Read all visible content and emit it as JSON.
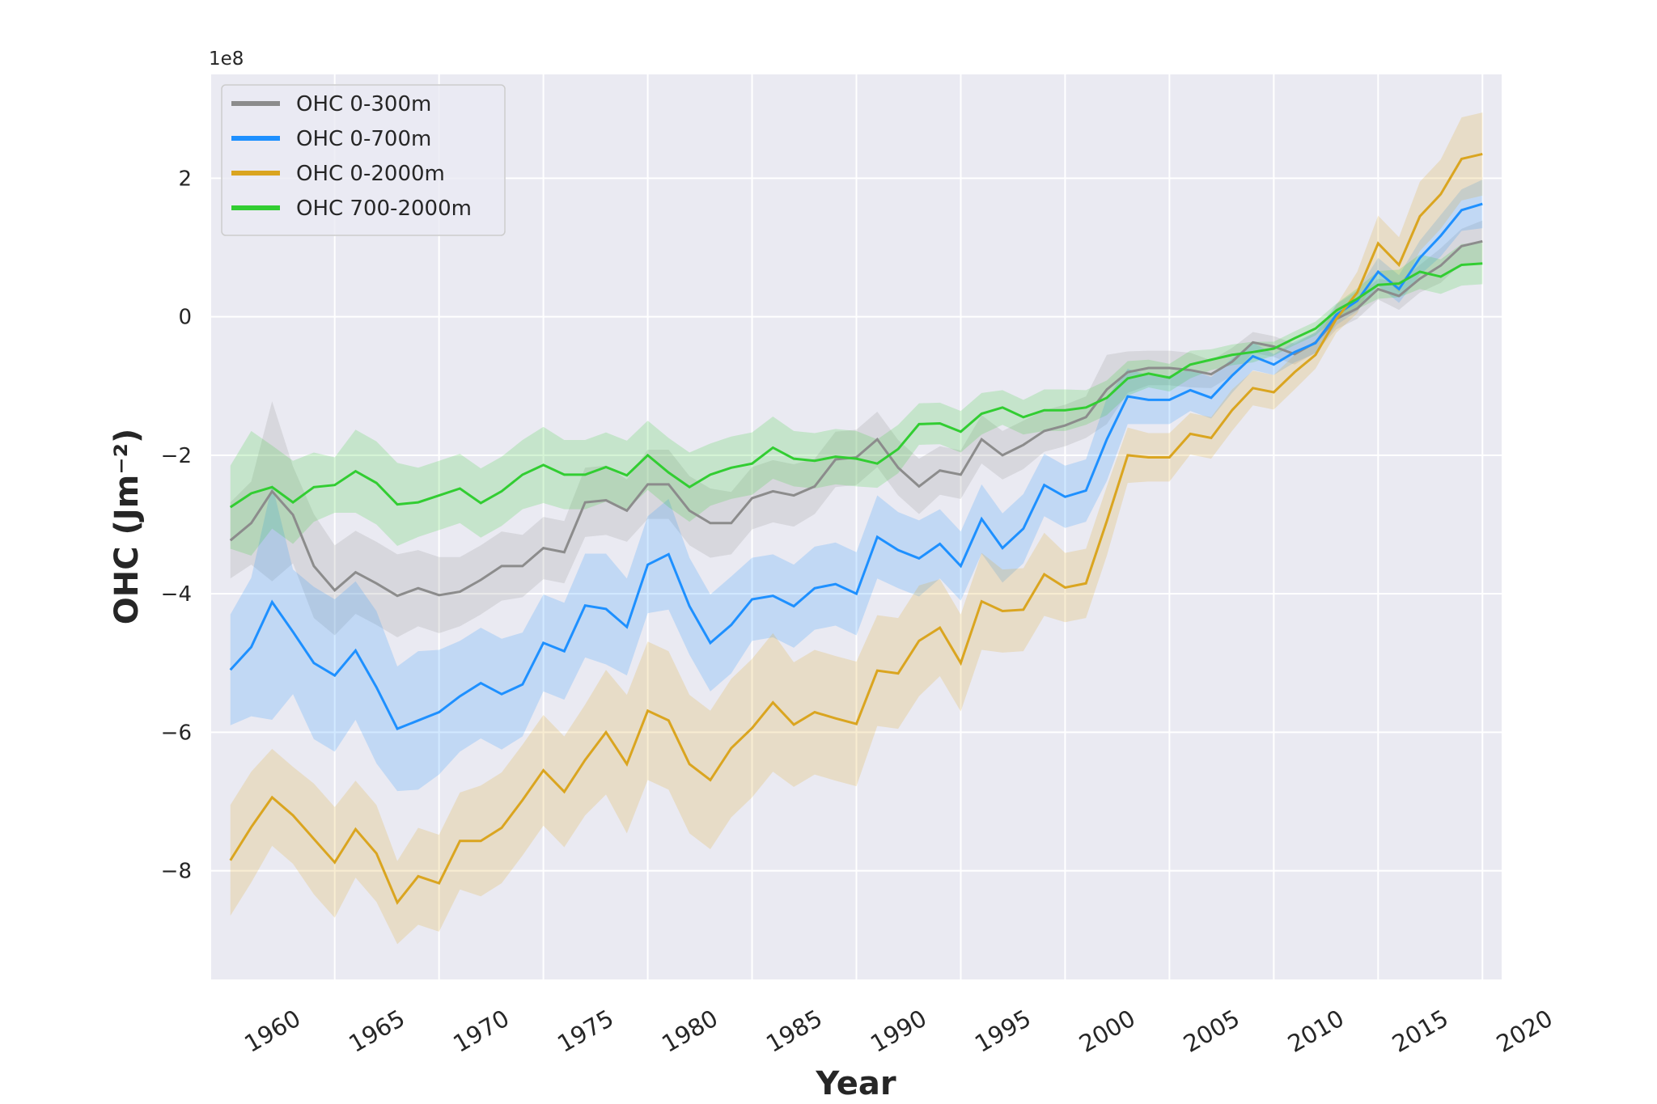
{
  "chart_data": {
    "type": "line",
    "xlabel": "Year",
    "ylabel": "OHC (Jm⁻²)",
    "y_offset_label": "1e8",
    "x": [
      1955,
      1956,
      1957,
      1958,
      1959,
      1960,
      1961,
      1962,
      1963,
      1964,
      1965,
      1966,
      1967,
      1968,
      1969,
      1970,
      1971,
      1972,
      1973,
      1974,
      1975,
      1976,
      1977,
      1978,
      1979,
      1980,
      1981,
      1982,
      1983,
      1984,
      1985,
      1986,
      1987,
      1988,
      1989,
      1990,
      1991,
      1992,
      1993,
      1994,
      1995,
      1996,
      1997,
      1998,
      1999,
      2000,
      2001,
      2002,
      2003,
      2004,
      2005,
      2006,
      2007,
      2008,
      2009,
      2010,
      2011,
      2012,
      2013,
      2014,
      2015
    ],
    "xlim": [
      1954.08,
      2015.92
    ],
    "xticks": [
      1960,
      1965,
      1970,
      1975,
      1980,
      1985,
      1990,
      1995,
      2000,
      2005,
      2010,
      2015,
      2020
    ],
    "ylim": [
      -9.57,
      3.5
    ],
    "yticks": [
      {
        "value": -8,
        "label": "−8"
      },
      {
        "value": -6,
        "label": "−6"
      },
      {
        "value": -4,
        "label": "−4"
      },
      {
        "value": -2,
        "label": "−2"
      },
      0,
      2
    ],
    "grid": true,
    "legend": "upper left",
    "series": [
      {
        "name": "OHC 0-300m",
        "color": "#8c8c8c",
        "values": [
          -3.23,
          -2.98,
          -2.52,
          -2.86,
          -3.6,
          -3.95,
          -3.69,
          -3.85,
          -4.03,
          -3.92,
          -4.02,
          -3.97,
          -3.8,
          -3.6,
          -3.6,
          -3.34,
          -3.4,
          -2.68,
          -2.65,
          -2.8,
          -2.42,
          -2.42,
          -2.8,
          -2.98,
          -2.98,
          -2.62,
          -2.52,
          -2.58,
          -2.45,
          -2.06,
          -2.03,
          -1.77,
          -2.18,
          -2.45,
          -2.22,
          -2.28,
          -1.77,
          -2.0,
          -1.85,
          -1.65,
          -1.57,
          -1.45,
          -1.05,
          -0.8,
          -0.74,
          -0.74,
          -0.77,
          -0.83,
          -0.65,
          -0.37,
          -0.43,
          -0.54,
          -0.37,
          -0.03,
          0.12,
          0.4,
          0.3,
          0.55,
          0.74,
          1.02,
          1.09
        ],
        "errors": [
          0.55,
          0.6,
          1.3,
          0.7,
          0.75,
          0.65,
          0.6,
          0.6,
          0.6,
          0.55,
          0.55,
          0.5,
          0.5,
          0.5,
          0.45,
          0.45,
          0.45,
          0.5,
          0.5,
          0.45,
          0.5,
          0.5,
          0.5,
          0.5,
          0.45,
          0.45,
          0.45,
          0.45,
          0.4,
          0.4,
          0.4,
          0.4,
          0.4,
          0.4,
          0.35,
          0.35,
          0.35,
          0.35,
          0.35,
          0.3,
          0.3,
          0.3,
          0.5,
          0.3,
          0.25,
          0.25,
          0.25,
          0.2,
          0.2,
          0.15,
          0.15,
          0.15,
          0.15,
          0.15,
          0.15,
          0.15,
          0.2,
          0.2,
          0.25,
          0.25,
          0.3
        ]
      },
      {
        "name": "OHC 0-700m",
        "color": "#1e90ff",
        "values": [
          -5.1,
          -4.77,
          -4.12,
          -4.55,
          -5.0,
          -5.18,
          -4.82,
          -5.35,
          -5.95,
          -5.83,
          -5.71,
          -5.48,
          -5.29,
          -5.45,
          -5.31,
          -4.71,
          -4.83,
          -4.17,
          -4.22,
          -4.48,
          -3.58,
          -3.43,
          -4.18,
          -4.71,
          -4.45,
          -4.08,
          -4.03,
          -4.18,
          -3.92,
          -3.86,
          -4.0,
          -3.18,
          -3.37,
          -3.49,
          -3.28,
          -3.6,
          -2.92,
          -3.34,
          -3.06,
          -2.43,
          -2.6,
          -2.51,
          -1.77,
          -1.15,
          -1.2,
          -1.2,
          -1.06,
          -1.17,
          -0.85,
          -0.57,
          -0.69,
          -0.51,
          -0.38,
          0.03,
          0.23,
          0.65,
          0.4,
          0.85,
          1.17,
          1.54,
          1.63
        ],
        "errors": [
          0.8,
          1.0,
          1.7,
          0.9,
          1.1,
          1.1,
          1.0,
          1.1,
          0.9,
          1.0,
          0.9,
          0.8,
          0.8,
          0.8,
          0.75,
          0.7,
          0.7,
          0.75,
          0.8,
          0.7,
          0.7,
          0.8,
          0.7,
          0.7,
          0.7,
          0.6,
          0.6,
          0.6,
          0.6,
          0.6,
          0.6,
          0.6,
          0.55,
          0.55,
          0.5,
          0.5,
          0.5,
          0.5,
          0.5,
          0.45,
          0.45,
          0.45,
          0.6,
          0.4,
          0.35,
          0.35,
          0.3,
          0.3,
          0.25,
          0.2,
          0.15,
          0.15,
          0.15,
          0.15,
          0.15,
          0.2,
          0.2,
          0.25,
          0.3,
          0.3,
          0.35
        ]
      },
      {
        "name": "OHC 0-2000m",
        "color": "#daa520",
        "values": [
          -7.85,
          -7.37,
          -6.94,
          -7.2,
          -7.54,
          -7.88,
          -7.4,
          -7.75,
          -8.46,
          -8.08,
          -8.18,
          -7.57,
          -7.57,
          -7.38,
          -6.98,
          -6.55,
          -6.86,
          -6.4,
          -6.0,
          -6.46,
          -5.69,
          -5.83,
          -6.46,
          -6.69,
          -6.23,
          -5.94,
          -5.57,
          -5.89,
          -5.71,
          -5.8,
          -5.88,
          -5.11,
          -5.15,
          -4.68,
          -4.49,
          -5.0,
          -4.11,
          -4.25,
          -4.23,
          -3.72,
          -3.91,
          -3.85,
          -2.95,
          -2.0,
          -2.03,
          -2.03,
          -1.69,
          -1.75,
          -1.35,
          -1.03,
          -1.09,
          -0.8,
          -0.55,
          -0.03,
          0.35,
          1.06,
          0.75,
          1.45,
          1.77,
          2.28,
          2.35
        ],
        "errors": [
          0.8,
          0.8,
          0.7,
          0.7,
          0.8,
          0.8,
          0.7,
          0.7,
          0.6,
          0.7,
          0.7,
          0.7,
          0.8,
          0.8,
          0.8,
          0.8,
          0.8,
          0.8,
          0.9,
          1.0,
          1.0,
          1.0,
          1.0,
          1.0,
          1.0,
          1.0,
          1.0,
          0.9,
          0.9,
          0.9,
          0.9,
          0.8,
          0.8,
          0.8,
          0.7,
          0.7,
          0.7,
          0.6,
          0.6,
          0.6,
          0.5,
          0.5,
          0.5,
          0.4,
          0.35,
          0.35,
          0.3,
          0.3,
          0.3,
          0.25,
          0.25,
          0.25,
          0.2,
          0.2,
          0.3,
          0.4,
          0.4,
          0.5,
          0.5,
          0.6,
          0.6
        ]
      },
      {
        "name": "OHC 700-2000m",
        "color": "#32cd32",
        "values": [
          -2.75,
          -2.55,
          -2.46,
          -2.68,
          -2.46,
          -2.43,
          -2.23,
          -2.4,
          -2.71,
          -2.68,
          -2.58,
          -2.48,
          -2.69,
          -2.52,
          -2.28,
          -2.14,
          -2.28,
          -2.28,
          -2.17,
          -2.29,
          -2.0,
          -2.25,
          -2.46,
          -2.28,
          -2.18,
          -2.12,
          -1.89,
          -2.05,
          -2.08,
          -2.02,
          -2.05,
          -2.12,
          -1.91,
          -1.55,
          -1.54,
          -1.66,
          -1.4,
          -1.31,
          -1.45,
          -1.35,
          -1.35,
          -1.31,
          -1.17,
          -0.89,
          -0.82,
          -0.88,
          -0.69,
          -0.62,
          -0.55,
          -0.51,
          -0.46,
          -0.31,
          -0.17,
          0.09,
          0.26,
          0.46,
          0.48,
          0.65,
          0.58,
          0.75,
          0.77
        ],
        "errors": [
          0.6,
          0.9,
          0.6,
          0.6,
          0.5,
          0.4,
          0.6,
          0.6,
          0.6,
          0.5,
          0.5,
          0.5,
          0.5,
          0.5,
          0.5,
          0.55,
          0.5,
          0.5,
          0.5,
          0.5,
          0.5,
          0.5,
          0.5,
          0.45,
          0.45,
          0.45,
          0.45,
          0.4,
          0.4,
          0.4,
          0.4,
          0.35,
          0.35,
          0.3,
          0.3,
          0.3,
          0.3,
          0.25,
          0.25,
          0.3,
          0.3,
          0.25,
          0.25,
          0.25,
          0.2,
          0.2,
          0.2,
          0.15,
          0.15,
          0.15,
          0.1,
          0.1,
          0.1,
          0.1,
          0.15,
          0.2,
          0.2,
          0.25,
          0.25,
          0.3,
          0.3
        ]
      }
    ]
  }
}
